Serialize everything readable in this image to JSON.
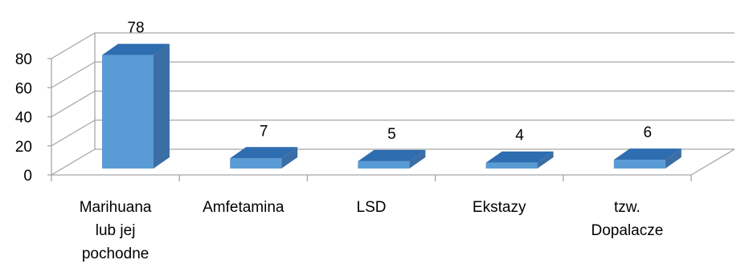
{
  "chart_data": {
    "type": "bar",
    "style": "3d-column",
    "categories": [
      [
        "Marihuana",
        "lub jej",
        "pochodne"
      ],
      [
        "Amfetamina"
      ],
      [
        "LSD"
      ],
      [
        "Ekstazy"
      ],
      [
        "tzw.",
        "Dopalacze"
      ]
    ],
    "values": [
      78,
      7,
      5,
      4,
      6
    ],
    "data_labels": [
      "78",
      "7",
      "5",
      "4",
      "6"
    ],
    "yticks": [
      "0",
      "20",
      "40",
      "60",
      "80"
    ],
    "ylim": [
      0,
      80
    ],
    "grid": true,
    "colors": {
      "front": "#5B9BD5",
      "top": "#2E6DAF",
      "side": "#3A6EA5",
      "grid": "#A6A6A6",
      "axis": "#A6A6A6"
    }
  }
}
